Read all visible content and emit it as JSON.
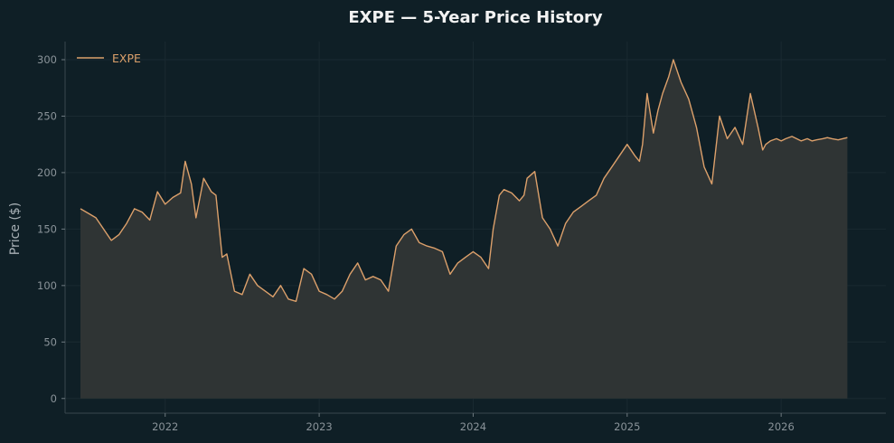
{
  "chart_data": {
    "type": "area",
    "title": "EXPE — 5-Year Price History",
    "xlabel": "",
    "ylabel": "Price ($)",
    "x_range": [
      2021.35,
      2026.68
    ],
    "ylim": [
      -13,
      316
    ],
    "y_ticks": [
      0,
      50,
      100,
      150,
      200,
      250,
      300
    ],
    "x_ticks": [
      {
        "value": 2022,
        "label": "2022"
      },
      {
        "value": 2023,
        "label": "2023"
      },
      {
        "value": 2024,
        "label": "2024"
      },
      {
        "value": 2025,
        "label": "2025"
      },
      {
        "value": 2026,
        "label": "2026"
      }
    ],
    "grid": true,
    "legend": {
      "position": "top-left",
      "entries": [
        "EXPE"
      ]
    },
    "colors": {
      "line": "#dca06b",
      "fill": "#2f3434",
      "background": "#0f1f26",
      "axis": "#39474d",
      "grid": "#1a2a31"
    },
    "series": [
      {
        "name": "EXPE",
        "x": [
          2021.45,
          2021.5,
          2021.55,
          2021.6,
          2021.65,
          2021.7,
          2021.75,
          2021.8,
          2021.85,
          2021.9,
          2021.95,
          2022.0,
          2022.05,
          2022.1,
          2022.13,
          2022.17,
          2022.2,
          2022.25,
          2022.3,
          2022.33,
          2022.37,
          2022.4,
          2022.45,
          2022.5,
          2022.55,
          2022.6,
          2022.65,
          2022.7,
          2022.75,
          2022.8,
          2022.85,
          2022.9,
          2022.95,
          2023.0,
          2023.05,
          2023.1,
          2023.15,
          2023.2,
          2023.25,
          2023.3,
          2023.35,
          2023.4,
          2023.45,
          2023.5,
          2023.55,
          2023.6,
          2023.65,
          2023.7,
          2023.75,
          2023.8,
          2023.85,
          2023.9,
          2023.95,
          2024.0,
          2024.05,
          2024.1,
          2024.13,
          2024.17,
          2024.2,
          2024.25,
          2024.3,
          2024.33,
          2024.35,
          2024.4,
          2024.45,
          2024.5,
          2024.55,
          2024.6,
          2024.65,
          2024.7,
          2024.75,
          2024.8,
          2024.85,
          2024.9,
          2024.95,
          2025.0,
          2025.05,
          2025.08,
          2025.1,
          2025.13,
          2025.17,
          2025.2,
          2025.23,
          2025.27,
          2025.3,
          2025.35,
          2025.4,
          2025.45,
          2025.5,
          2025.55,
          2025.6,
          2025.65,
          2025.7,
          2025.75,
          2025.8,
          2025.85,
          2025.88,
          2025.9,
          2025.93,
          2025.97,
          2026.0,
          2026.03,
          2026.07,
          2026.1,
          2026.13,
          2026.17,
          2026.2,
          2026.23,
          2026.27,
          2026.3,
          2026.33,
          2026.37,
          2026.4,
          2026.43
        ],
        "values": [
          168,
          164,
          160,
          150,
          140,
          145,
          155,
          168,
          165,
          158,
          183,
          172,
          178,
          182,
          210,
          190,
          160,
          195,
          183,
          180,
          125,
          128,
          95,
          92,
          110,
          100,
          95,
          90,
          100,
          88,
          86,
          115,
          110,
          95,
          92,
          88,
          95,
          110,
          120,
          105,
          108,
          105,
          95,
          135,
          145,
          150,
          138,
          135,
          133,
          130,
          110,
          120,
          125,
          130,
          125,
          115,
          150,
          180,
          185,
          182,
          175,
          180,
          195,
          201,
          160,
          150,
          135,
          155,
          165,
          170,
          175,
          180,
          195,
          205,
          215,
          225,
          215,
          210,
          225,
          270,
          235,
          255,
          270,
          285,
          300,
          280,
          265,
          240,
          205,
          190,
          250,
          230,
          240,
          225,
          270,
          240,
          220,
          225,
          228,
          230,
          228,
          230,
          232,
          230,
          228,
          230,
          228,
          229,
          230,
          231,
          230,
          229,
          230,
          231
        ]
      }
    ]
  }
}
